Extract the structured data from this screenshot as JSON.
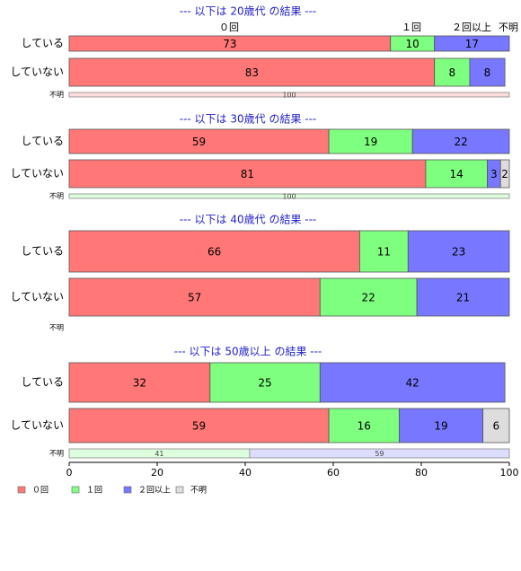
{
  "chart_data": {
    "type": "bar",
    "orientation": "horizontal",
    "stacked": true,
    "xlim": [
      0,
      100
    ],
    "x_ticks": [
      "0",
      "20",
      "40",
      "60",
      "80",
      "100"
    ],
    "legend": {
      "position": "bottom-left",
      "entries": [
        {
          "name": "０回",
          "color": "#ff7777"
        },
        {
          "name": "１回",
          "color": "#7fff7f"
        },
        {
          "name": "２回以上",
          "color": "#7777ff"
        },
        {
          "name": "不明",
          "color": "#dddddd"
        }
      ]
    },
    "series_colors": [
      "#ff7777",
      "#7fff7f",
      "#7777ff",
      "#dddddd"
    ],
    "top_column_labels": [
      "０回",
      "１回",
      "２回以上",
      "不明"
    ],
    "panels": [
      {
        "title": "--- 以下は 20歳代 の結果 ---",
        "rows": [
          {
            "label": "している",
            "values": [
              73,
              10,
              17,
              0
            ]
          },
          {
            "label": "していない",
            "values": [
              83,
              8,
              8,
              0
            ]
          }
        ],
        "unknown": {
          "label": "不明",
          "values": [
            100,
            0,
            0,
            0
          ]
        }
      },
      {
        "title": "--- 以下は 30歳代 の結果 ---",
        "rows": [
          {
            "label": "している",
            "values": [
              59,
              19,
              22,
              0
            ]
          },
          {
            "label": "していない",
            "values": [
              81,
              14,
              3,
              2
            ]
          }
        ],
        "unknown": {
          "label": "不明",
          "values": [
            0,
            100,
            0,
            0
          ]
        }
      },
      {
        "title": "--- 以下は 40歳代 の結果 ---",
        "rows": [
          {
            "label": "している",
            "values": [
              66,
              11,
              23,
              0
            ]
          },
          {
            "label": "していない",
            "values": [
              57,
              22,
              21,
              0
            ]
          }
        ],
        "unknown": {
          "label": "不明",
          "values": [
            0,
            0,
            0,
            0
          ]
        }
      },
      {
        "title": "--- 以下は 50歳以上 の結果 ---",
        "rows": [
          {
            "label": "している",
            "values": [
              32,
              25,
              42,
              0
            ]
          },
          {
            "label": "していない",
            "values": [
              59,
              16,
              19,
              6
            ]
          }
        ],
        "unknown": {
          "label": "不明",
          "values": [
            0,
            41,
            59,
            0
          ]
        }
      }
    ]
  }
}
